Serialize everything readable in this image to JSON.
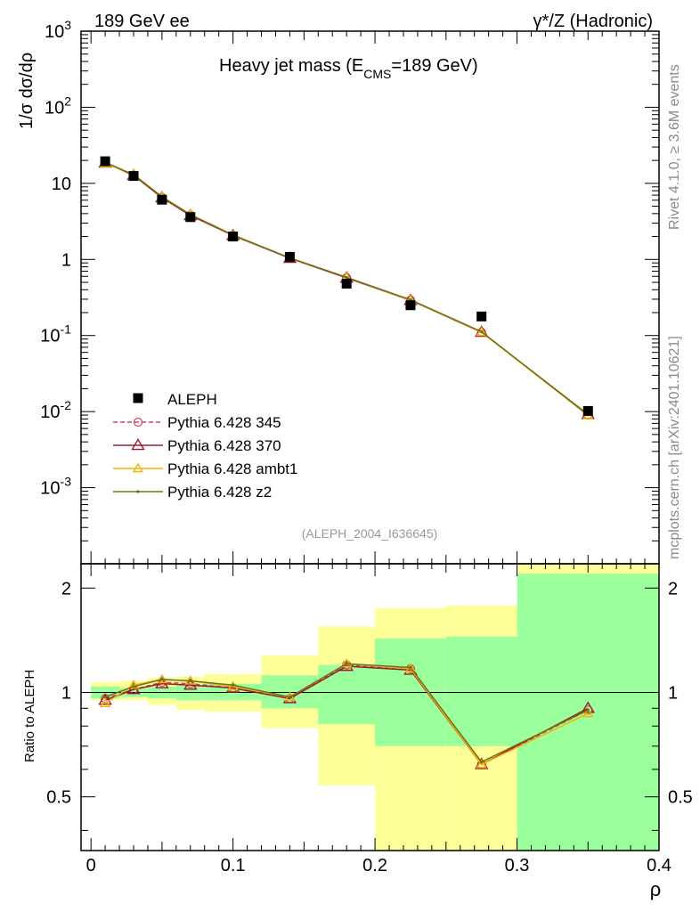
{
  "header": {
    "left": "189 GeV ee",
    "right_prefix": "γ*/Z",
    "right_suffix": "(Hadronic)"
  },
  "side_labels": {
    "top": "Rivet 4.1.0, ≥ 3.6M events",
    "bottom": "mcplots.cern.ch [arXiv:2401.10621]"
  },
  "chart_data": {
    "type": "line",
    "title_prefix": "Heavy jet mass (E",
    "title_sub": "CMS",
    "title_suffix": "=189 GeV)",
    "analysis_id": "(ALEPH_2004_I636645)",
    "xlabel": "ρ",
    "ylabel_main": "1/σ  dσ/dρ",
    "ylabel_ratio": "Ratio to ALEPH",
    "xlim": [
      -0.007,
      0.4
    ],
    "ylim_main": [
      0.0001,
      1000
    ],
    "ylim_ratio": [
      0.35,
      2.35
    ],
    "x_ticks": [
      "0",
      "0.1",
      "0.2",
      "0.3",
      "0.4"
    ],
    "y_ticks_main": [
      "10^3",
      "10^2",
      "10",
      "1",
      "10^-1",
      "10^-2",
      "10^-3"
    ],
    "y_ticks_ratio": [
      "2",
      "1",
      "0.5"
    ],
    "x": [
      0.01,
      0.03,
      0.05,
      0.07,
      0.1,
      0.14,
      0.18,
      0.225,
      0.275,
      0.35
    ],
    "data": {
      "name": "ALEPH",
      "values": [
        19.5,
        12.5,
        6.1,
        3.6,
        2.0,
        1.08,
        0.48,
        0.25,
        0.178,
        0.0102
      ],
      "bins": [
        [
          0.0,
          0.02
        ],
        [
          0.02,
          0.04
        ],
        [
          0.04,
          0.06
        ],
        [
          0.06,
          0.08
        ],
        [
          0.08,
          0.12
        ],
        [
          0.12,
          0.16
        ],
        [
          0.16,
          0.2
        ],
        [
          0.2,
          0.25
        ],
        [
          0.25,
          0.3
        ],
        [
          0.3,
          0.4
        ]
      ],
      "band_green": [
        [
          0.96,
          1.04
        ],
        [
          0.97,
          1.03
        ],
        [
          0.96,
          1.04
        ],
        [
          0.95,
          1.05
        ],
        [
          0.95,
          1.06
        ],
        [
          0.9,
          1.12
        ],
        [
          0.81,
          1.2
        ],
        [
          0.7,
          1.43
        ],
        [
          0.7,
          1.45
        ],
        [
          0.35,
          2.2
        ]
      ],
      "band_yellow": [
        [
          0.95,
          1.07
        ],
        [
          0.95,
          1.08
        ],
        [
          0.92,
          1.1
        ],
        [
          0.89,
          1.11
        ],
        [
          0.88,
          1.13
        ],
        [
          0.79,
          1.28
        ],
        [
          0.54,
          1.55
        ],
        [
          0.35,
          1.75
        ],
        [
          0.35,
          1.78
        ],
        [
          0.35,
          2.35
        ]
      ]
    },
    "series": [
      {
        "name": "Pythia 6.428 345",
        "color": "#c9485f",
        "dashed": true,
        "marker": "circle",
        "ratio": [
          0.96,
          1.02,
          1.07,
          1.06,
          1.03,
          0.96,
          1.2,
          1.17,
          0.62,
          0.89
        ]
      },
      {
        "name": "Pythia 6.428 370",
        "color": "#9c1a2e",
        "dashed": false,
        "marker": "triangle",
        "ratio": [
          0.95,
          1.02,
          1.06,
          1.05,
          1.03,
          0.96,
          1.19,
          1.16,
          0.62,
          0.9
        ]
      },
      {
        "name": "Pythia 6.428 ambt1",
        "color": "#f2b40a",
        "dashed": false,
        "marker": "triangle",
        "ratio": [
          0.93,
          1.05,
          1.09,
          1.08,
          1.04,
          0.97,
          1.21,
          1.17,
          0.62,
          0.87
        ]
      },
      {
        "name": "Pythia 6.428 z2",
        "color": "#6b7318",
        "dashed": false,
        "marker": "dot",
        "ratio": [
          0.97,
          1.04,
          1.09,
          1.08,
          1.05,
          0.97,
          1.21,
          1.18,
          0.63,
          0.89
        ]
      }
    ]
  }
}
